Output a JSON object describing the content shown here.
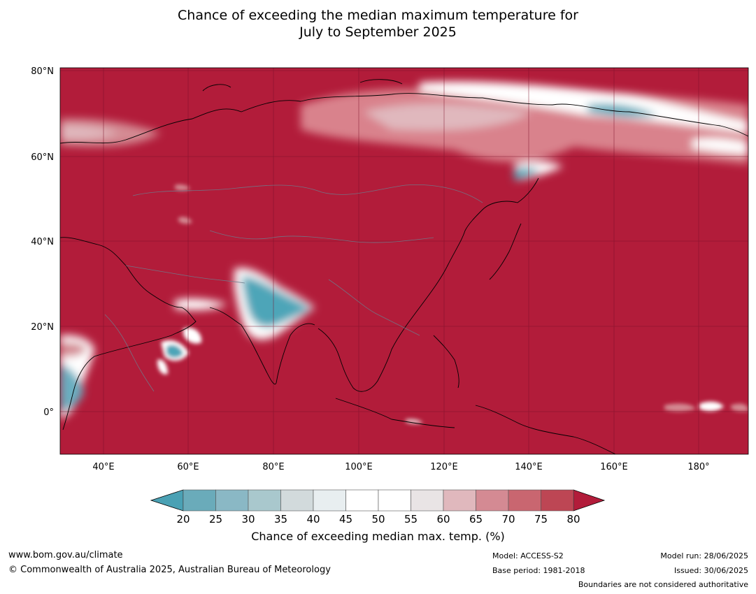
{
  "title": {
    "line1": "Chance of exceeding the median maximum temperature for",
    "line2": "July to September 2025"
  },
  "map": {
    "lat_labels": [
      "80°N",
      "60°N",
      "40°N",
      "20°N",
      "0°"
    ],
    "lon_labels": [
      "40°E",
      "60°E",
      "80°E",
      "100°E",
      "120°E",
      "140°E",
      "160°E",
      "180°"
    ],
    "base_color": "#b21c3a",
    "regions": [
      {
        "name": "india-below-median",
        "color": "#4ea5b8"
      },
      {
        "name": "horn-of-africa-below-median",
        "color": "#6aaec0"
      },
      {
        "name": "siberia-mixed",
        "color": "#d9828c"
      }
    ]
  },
  "legend": {
    "tick_labels": [
      "20",
      "25",
      "30",
      "35",
      "40",
      "45",
      "50",
      "55",
      "60",
      "65",
      "70",
      "75",
      "80"
    ],
    "colors": [
      "#6aabba",
      "#8ab8c5",
      "#a9c8cd",
      "#d2dadc",
      "#e8eef0",
      "#ffffff",
      "#ffffff",
      "#e9e4e5",
      "#e0b8bd",
      "#d48a93",
      "#c96670",
      "#bd4654"
    ],
    "under_color": "#4aa1b4",
    "over_color": "#b21c3a",
    "label": "Chance of exceeding median max. temp. (%)"
  },
  "footer": {
    "website": "www.bom.gov.au/climate",
    "copyright": "© Commonwealth of Australia 2025, Australian Bureau of Meteorology",
    "model": "Model: ACCESS-S2",
    "base_period": "Base period: 1981-2018",
    "model_run": "Model run: 28/06/2025",
    "issued": "Issued: 30/06/2025",
    "disclaimer": "Boundaries are not considered authoritative"
  }
}
